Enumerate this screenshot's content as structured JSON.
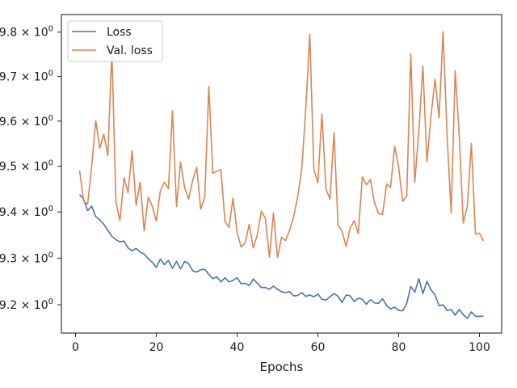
{
  "chart_data": {
    "type": "line",
    "title": "",
    "xlabel": "Epochs",
    "ylabel": "",
    "xlim": [
      -3.5,
      105.5
    ],
    "ylim": [
      9.14,
      9.84
    ],
    "yscale": "log",
    "grid": false,
    "legend_placement": "top-left",
    "x_ticks": [
      0,
      20,
      40,
      60,
      80,
      100
    ],
    "x_tick_labels": [
      "0",
      "20",
      "40",
      "60",
      "80",
      "100"
    ],
    "y_ticks": [
      9.2,
      9.3,
      9.4,
      9.5,
      9.6,
      9.7,
      9.8
    ],
    "y_tick_labels": [
      "9.2 × 10",
      "9.3 × 10",
      "9.4 × 10",
      "9.5 × 10",
      "9.6 × 10",
      "9.7 × 10",
      "9.8 × 10"
    ],
    "y_tick_exponent": "0",
    "series": [
      {
        "name": "Loss",
        "color": "#4c72b0",
        "x_start": 1,
        "values": [
          9.438,
          9.428,
          9.403,
          9.413,
          9.39,
          9.383,
          9.373,
          9.36,
          9.347,
          9.34,
          9.335,
          9.337,
          9.322,
          9.316,
          9.321,
          9.313,
          9.309,
          9.299,
          9.291,
          9.28,
          9.298,
          9.286,
          9.295,
          9.278,
          9.293,
          9.277,
          9.293,
          9.288,
          9.273,
          9.27,
          9.275,
          9.276,
          9.265,
          9.256,
          9.26,
          9.249,
          9.258,
          9.249,
          9.252,
          9.258,
          9.245,
          9.246,
          9.241,
          9.255,
          9.246,
          9.237,
          9.237,
          9.233,
          9.24,
          9.233,
          9.228,
          9.226,
          9.228,
          9.219,
          9.22,
          9.226,
          9.218,
          9.221,
          9.217,
          9.223,
          9.212,
          9.21,
          9.217,
          9.224,
          9.218,
          9.205,
          9.221,
          9.219,
          9.207,
          9.214,
          9.212,
          9.201,
          9.211,
          9.204,
          9.203,
          9.213,
          9.199,
          9.191,
          9.195,
          9.188,
          9.187,
          9.203,
          9.239,
          9.227,
          9.256,
          9.224,
          9.25,
          9.232,
          9.221,
          9.198,
          9.2,
          9.188,
          9.19,
          9.178,
          9.19,
          9.179,
          9.171,
          9.185,
          9.176,
          9.175,
          9.176
        ]
      },
      {
        "name": "Val. loss",
        "color": "#dd8452",
        "x_start": 1,
        "values": [
          9.491,
          9.424,
          9.417,
          9.5,
          9.601,
          9.54,
          9.571,
          9.524,
          9.758,
          9.421,
          9.381,
          9.475,
          9.442,
          9.534,
          9.415,
          9.465,
          9.359,
          9.432,
          9.413,
          9.38,
          9.446,
          9.465,
          9.451,
          9.623,
          9.412,
          9.509,
          9.454,
          9.428,
          9.469,
          9.498,
          9.406,
          9.433,
          9.678,
          9.485,
          9.489,
          9.493,
          9.379,
          9.367,
          9.43,
          9.356,
          9.324,
          9.333,
          9.373,
          9.322,
          9.35,
          9.402,
          9.386,
          9.302,
          9.398,
          9.301,
          9.345,
          9.338,
          9.36,
          9.39,
          9.433,
          9.493,
          9.627,
          9.795,
          9.494,
          9.464,
          9.616,
          9.45,
          9.428,
          9.574,
          9.371,
          9.358,
          9.325,
          9.365,
          9.381,
          9.353,
          9.477,
          9.459,
          9.471,
          9.421,
          9.397,
          9.394,
          9.461,
          9.454,
          9.544,
          9.498,
          9.423,
          9.435,
          9.751,
          9.465,
          9.578,
          9.723,
          9.51,
          9.61,
          9.694,
          9.607,
          9.801,
          9.566,
          9.398,
          9.713,
          9.567,
          9.376,
          9.413,
          9.551,
          9.352,
          9.354,
          9.337
        ]
      }
    ]
  }
}
